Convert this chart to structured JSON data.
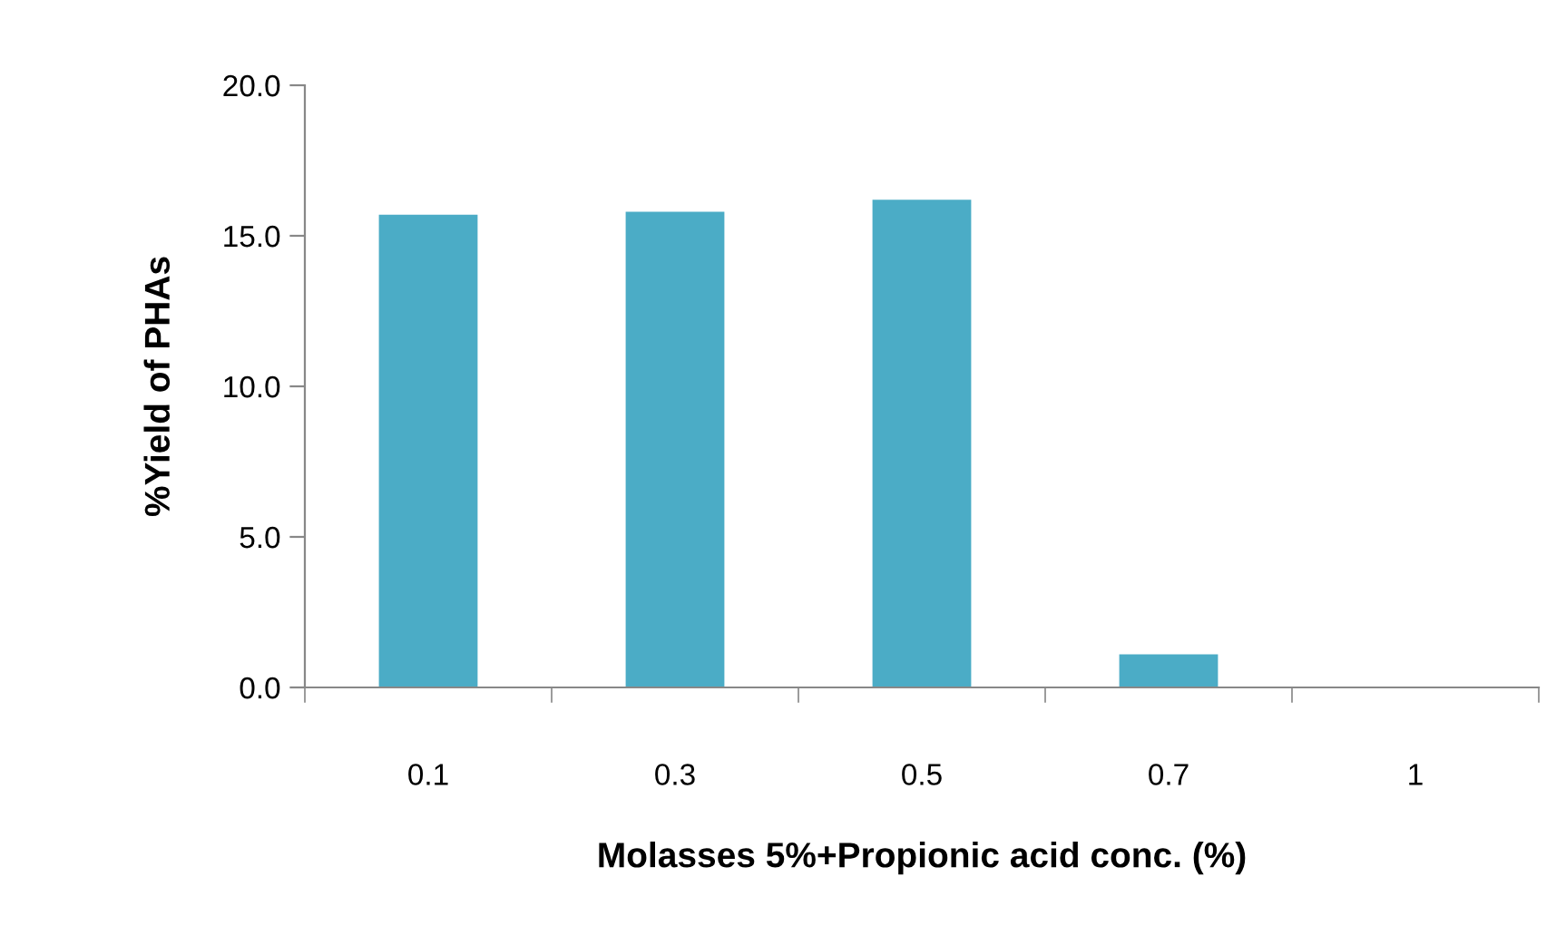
{
  "chart_data": {
    "type": "bar",
    "xlabel": "Molasses 5%+Propionic acid conc. (%)",
    "ylabel": "%Yield of PHAs",
    "categories": [
      "0.1",
      "0.3",
      "0.5",
      "0.7",
      "1"
    ],
    "values": [
      15.7,
      15.8,
      16.2,
      1.1,
      0
    ],
    "color": "#4bacc6",
    "ylim": [
      0,
      20
    ],
    "yticks": [
      {
        "value": 0,
        "label": "0.0"
      },
      {
        "value": 5,
        "label": "5.0"
      },
      {
        "value": 10,
        "label": "10.0"
      },
      {
        "value": 15,
        "label": "15.0"
      },
      {
        "value": 20,
        "label": "20.0"
      }
    ],
    "grid": false,
    "legend": false
  }
}
